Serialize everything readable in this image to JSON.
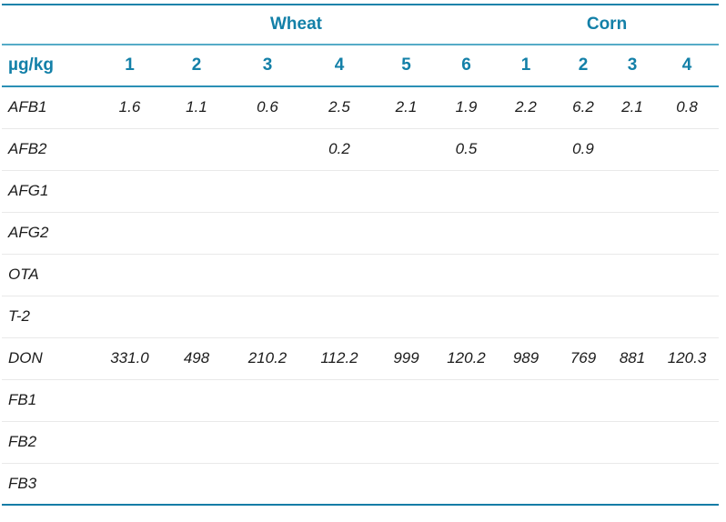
{
  "colors": {
    "accent_text": "#1380a8",
    "rule_strong": "#1a82aa",
    "rule_light": "#55abc7",
    "row_divider": "#e9e9e9",
    "data_text": "#1c1c1c",
    "background": "#ffffff"
  },
  "chart_data": {
    "type": "table",
    "unit_label": "µg/kg",
    "groups": [
      {
        "label": "Wheat",
        "span": 6
      },
      {
        "label": "Corn",
        "span": 4
      }
    ],
    "column_headers": [
      "1",
      "2",
      "3",
      "4",
      "5",
      "6",
      "1",
      "2",
      "3",
      "4"
    ],
    "rows": [
      {
        "label": "AFB1",
        "values": [
          "1.6",
          "1.1",
          "0.6",
          "2.5",
          "2.1",
          "1.9",
          "2.2",
          "6.2",
          "2.1",
          "0.8"
        ]
      },
      {
        "label": "AFB2",
        "values": [
          "",
          "",
          "",
          "0.2",
          "",
          "0.5",
          "",
          "0.9",
          "",
          ""
        ]
      },
      {
        "label": "AFG1",
        "values": [
          "",
          "",
          "",
          "",
          "",
          "",
          "",
          "",
          "",
          ""
        ]
      },
      {
        "label": "AFG2",
        "values": [
          "",
          "",
          "",
          "",
          "",
          "",
          "",
          "",
          "",
          ""
        ]
      },
      {
        "label": "OTA",
        "values": [
          "",
          "",
          "",
          "",
          "",
          "",
          "",
          "",
          "",
          ""
        ]
      },
      {
        "label": "T-2",
        "values": [
          "",
          "",
          "",
          "",
          "",
          "",
          "",
          "",
          "",
          ""
        ]
      },
      {
        "label": "DON",
        "values": [
          "331.0",
          "498",
          "210.2",
          "112.2",
          "999",
          "120.2",
          "989",
          "769",
          "881",
          "120.3"
        ]
      },
      {
        "label": "FB1",
        "values": [
          "",
          "",
          "",
          "",
          "",
          "",
          "",
          "",
          "",
          ""
        ]
      },
      {
        "label": "FB2",
        "values": [
          "",
          "",
          "",
          "",
          "",
          "",
          "",
          "",
          "",
          ""
        ]
      },
      {
        "label": "FB3",
        "values": [
          "",
          "",
          "",
          "",
          "",
          "",
          "",
          "",
          "",
          ""
        ]
      }
    ]
  }
}
